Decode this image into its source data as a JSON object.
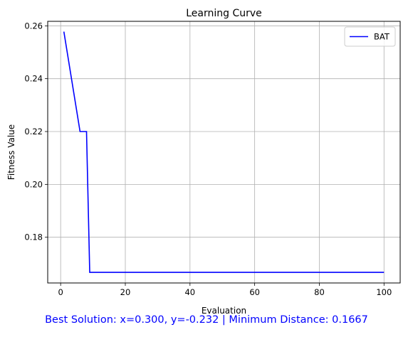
{
  "chart_data": {
    "type": "line",
    "title": "Learning Curve",
    "xlabel": "Evaluation",
    "ylabel": "Fitness Value",
    "xlim": [
      -4,
      105
    ],
    "ylim": [
      0.1627,
      0.2617
    ],
    "xticks": [
      0,
      20,
      40,
      60,
      80,
      100
    ],
    "yticks": [
      0.18,
      0.2,
      0.22,
      0.24,
      0.26
    ],
    "grid": true,
    "legend_position": "top-right",
    "series": [
      {
        "name": "BAT",
        "color": "#0000ff",
        "steps": [
          {
            "x": 1,
            "y": 0.2578
          },
          {
            "x": 6,
            "y": 0.22
          },
          {
            "x": 8,
            "y": 0.22
          },
          {
            "x": 9,
            "y": 0.1667
          },
          {
            "x": 100,
            "y": 0.1667
          }
        ]
      }
    ]
  },
  "caption": "Best Solution: x=0.300, y=-0.232 | Minimum Distance: 0.1667"
}
